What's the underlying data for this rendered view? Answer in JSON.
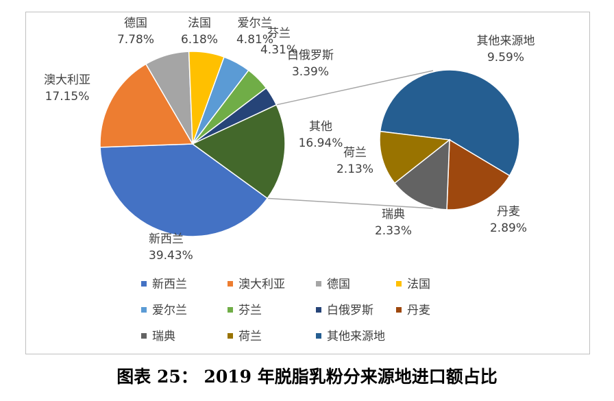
{
  "chart_data": {
    "type": "pie",
    "variant": "pie-of-pie",
    "legend": "bottom",
    "series": [
      {
        "name": "新西兰",
        "value": 39.43,
        "label": "39.43%",
        "color": "#4472C4"
      },
      {
        "name": "澳大利亚",
        "value": 17.15,
        "label": "17.15%",
        "color": "#ED7D31"
      },
      {
        "name": "德国",
        "value": 7.78,
        "label": "7.78%",
        "color": "#A5A5A5"
      },
      {
        "name": "法国",
        "value": 6.18,
        "label": "6.18%",
        "color": "#FFC000"
      },
      {
        "name": "爱尔兰",
        "value": 4.81,
        "label": "4.81%",
        "color": "#5B9BD5"
      },
      {
        "name": "芬兰",
        "value": 4.31,
        "label": "4.31%",
        "color": "#70AD47"
      },
      {
        "name": "白俄罗斯",
        "value": 3.39,
        "label": "3.39%",
        "color": "#264478"
      },
      {
        "name": "丹麦",
        "value": 2.89,
        "label": "2.89%",
        "color": "#9E480E"
      },
      {
        "name": "瑞典",
        "value": 2.33,
        "label": "2.33%",
        "color": "#636363"
      },
      {
        "name": "荷兰",
        "value": 2.13,
        "label": "2.13%",
        "color": "#997300"
      },
      {
        "name": "其他来源地",
        "value": 9.59,
        "label": "9.59%",
        "color": "#255E91"
      }
    ],
    "other_group": {
      "name": "其他",
      "value": 16.94,
      "label": "16.94%",
      "color": "#43682B"
    }
  },
  "caption": "图表 25：  2019 年脱脂乳粉分来源地进口额占比"
}
